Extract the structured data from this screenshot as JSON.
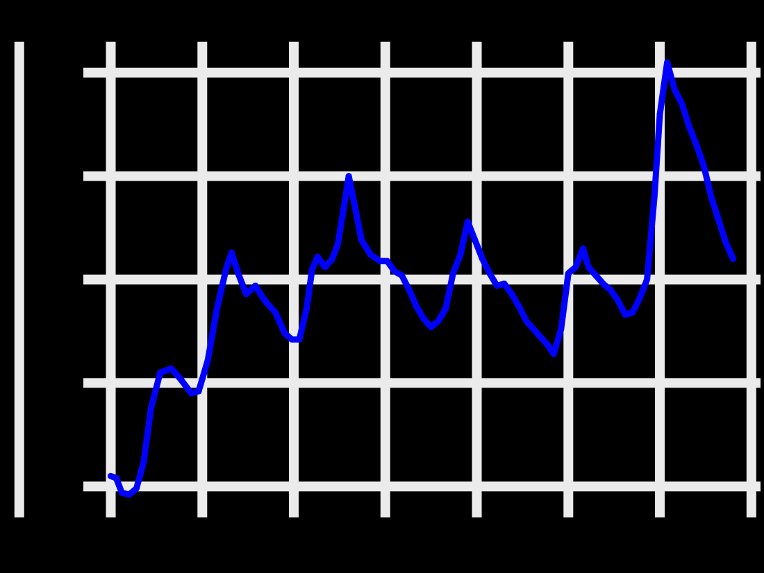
{
  "chart_data": {
    "type": "line",
    "title": "",
    "xlabel": "",
    "ylabel": "",
    "grid": true,
    "colors": {
      "background": "#000000",
      "grid": "#ebebeb",
      "line": "#0000ff",
      "tick_text": "#4d4d4d"
    },
    "x_tick_labels": [
      "",
      "",
      "",
      "",
      ""
    ],
    "y_tick_labels": [
      "",
      "",
      ""
    ],
    "series": [
      {
        "values": [
          [
            0.0,
            0.55
          ],
          [
            0.03,
            0.54
          ],
          [
            0.06,
            0.47
          ],
          [
            0.1,
            0.46
          ],
          [
            0.14,
            0.49
          ],
          [
            0.18,
            0.62
          ],
          [
            0.22,
            0.88
          ],
          [
            0.27,
            1.05
          ],
          [
            0.33,
            1.07
          ],
          [
            0.38,
            1.02
          ],
          [
            0.44,
            0.95
          ],
          [
            0.48,
            0.96
          ],
          [
            0.53,
            1.11
          ],
          [
            0.58,
            1.36
          ],
          [
            0.63,
            1.55
          ],
          [
            0.66,
            1.63
          ],
          [
            0.7,
            1.52
          ],
          [
            0.74,
            1.43
          ],
          [
            0.79,
            1.47
          ],
          [
            0.84,
            1.4
          ],
          [
            0.9,
            1.34
          ],
          [
            0.95,
            1.24
          ],
          [
            0.99,
            1.21
          ],
          [
            1.03,
            1.21
          ],
          [
            1.07,
            1.36
          ],
          [
            1.1,
            1.55
          ],
          [
            1.13,
            1.61
          ],
          [
            1.17,
            1.56
          ],
          [
            1.21,
            1.6
          ],
          [
            1.24,
            1.67
          ],
          [
            1.27,
            1.83
          ],
          [
            1.3,
            2.0
          ],
          [
            1.33,
            1.87
          ],
          [
            1.37,
            1.69
          ],
          [
            1.42,
            1.62
          ],
          [
            1.47,
            1.59
          ],
          [
            1.51,
            1.59
          ],
          [
            1.55,
            1.54
          ],
          [
            1.59,
            1.52
          ],
          [
            1.63,
            1.45
          ],
          [
            1.67,
            1.37
          ],
          [
            1.71,
            1.31
          ],
          [
            1.75,
            1.27
          ],
          [
            1.79,
            1.3
          ],
          [
            1.83,
            1.36
          ],
          [
            1.87,
            1.53
          ],
          [
            1.91,
            1.62
          ],
          [
            1.95,
            1.78
          ],
          [
            1.99,
            1.69
          ],
          [
            2.03,
            1.6
          ],
          [
            2.07,
            1.53
          ],
          [
            2.11,
            1.47
          ],
          [
            2.15,
            1.48
          ],
          [
            2.19,
            1.43
          ],
          [
            2.23,
            1.37
          ],
          [
            2.27,
            1.3
          ],
          [
            2.31,
            1.26
          ],
          [
            2.35,
            1.22
          ],
          [
            2.39,
            1.18
          ],
          [
            2.42,
            1.14
          ],
          [
            2.46,
            1.26
          ],
          [
            2.5,
            1.53
          ],
          [
            2.54,
            1.56
          ],
          [
            2.58,
            1.65
          ],
          [
            2.61,
            1.56
          ],
          [
            2.65,
            1.52
          ],
          [
            2.69,
            1.48
          ],
          [
            2.73,
            1.45
          ],
          [
            2.77,
            1.4
          ],
          [
            2.81,
            1.33
          ],
          [
            2.85,
            1.34
          ],
          [
            2.89,
            1.41
          ],
          [
            2.93,
            1.5
          ],
          [
            2.97,
            1.9
          ],
          [
            3.0,
            2.3
          ],
          [
            3.04,
            2.55
          ],
          [
            3.08,
            2.42
          ],
          [
            3.12,
            2.35
          ],
          [
            3.16,
            2.24
          ],
          [
            3.2,
            2.15
          ],
          [
            3.24,
            2.05
          ],
          [
            3.28,
            1.9
          ],
          [
            3.32,
            1.79
          ],
          [
            3.36,
            1.68
          ],
          [
            3.4,
            1.6
          ]
        ]
      }
    ],
    "x_range": [
      -0.15,
      3.55
    ],
    "y_range": [
      0.35,
      2.65
    ]
  }
}
